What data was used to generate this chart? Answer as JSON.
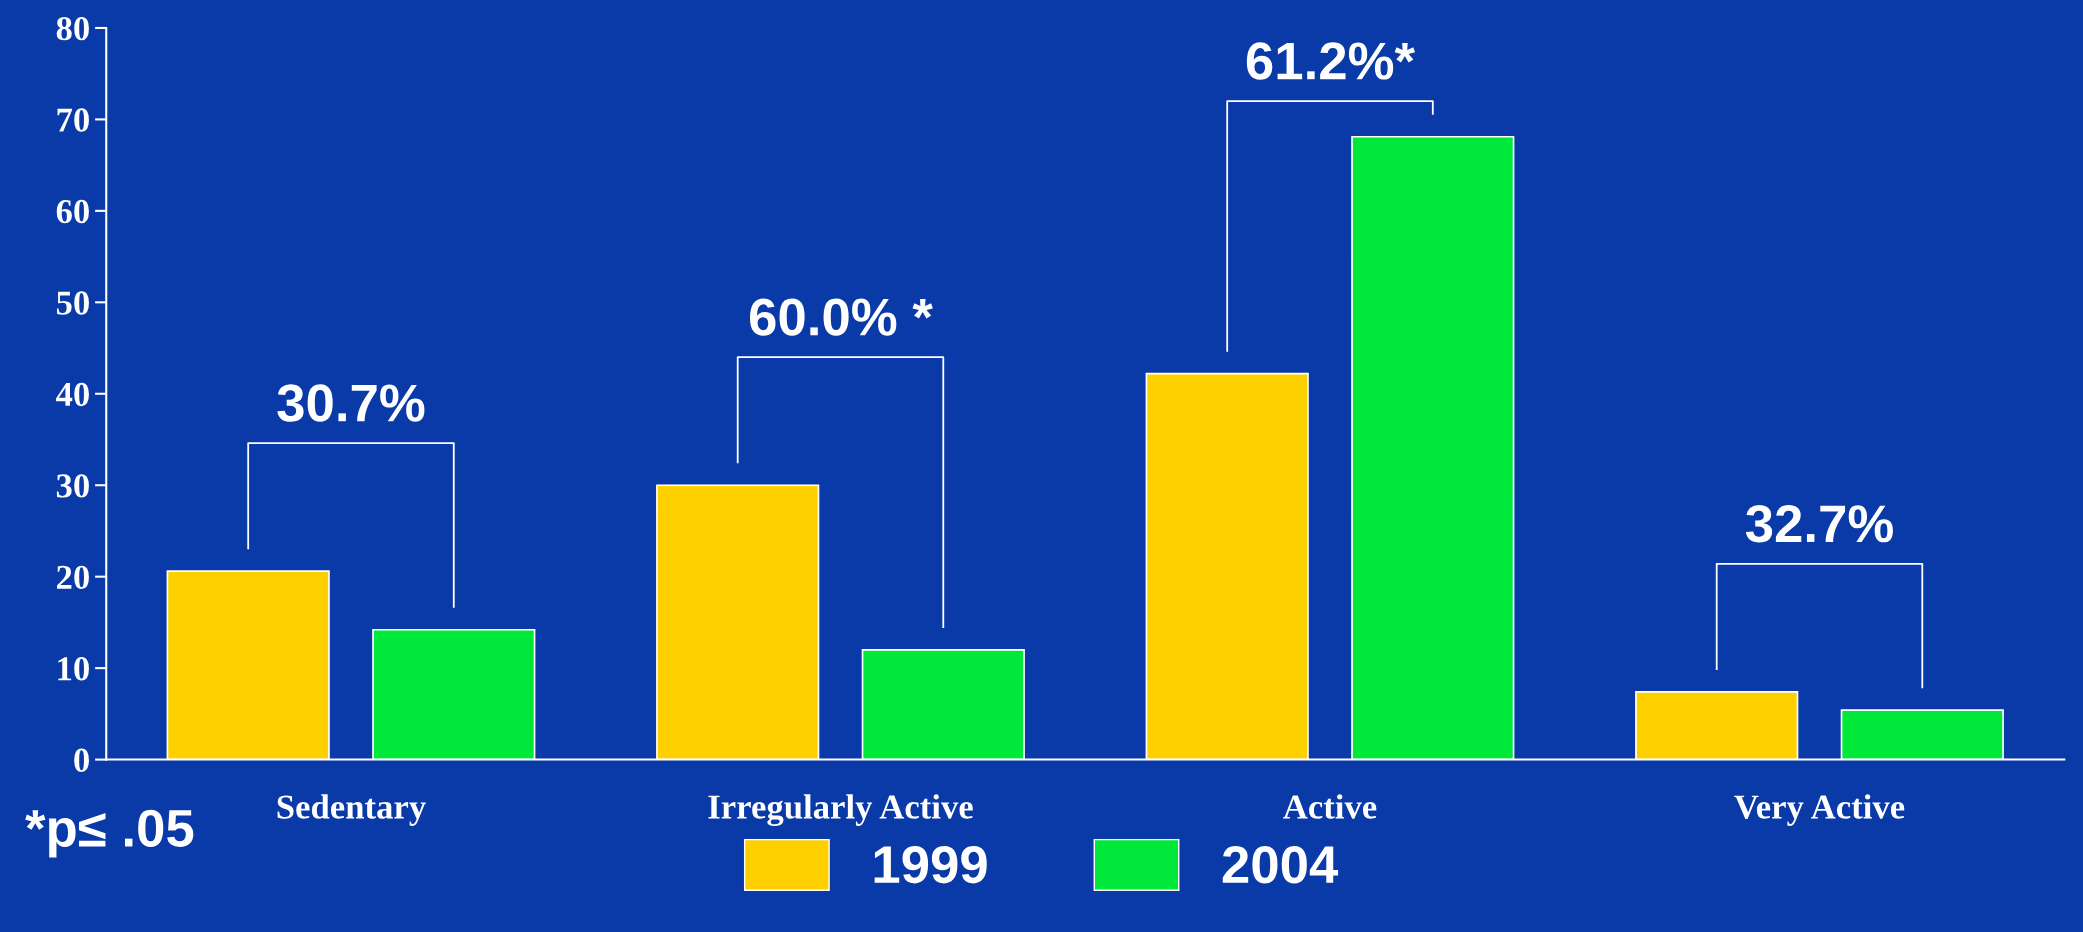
{
  "chart_data": {
    "type": "bar",
    "categories": [
      "Sedentary",
      "Irregularly Active",
      "Active",
      "Very Active"
    ],
    "series": [
      {
        "name": "1999",
        "color": "#ffd000",
        "values": [
          20.6,
          30.0,
          42.2,
          7.4
        ]
      },
      {
        "name": "2004",
        "color": "#00e83a",
        "values": [
          14.2,
          12.0,
          68.1,
          5.4
        ]
      }
    ],
    "ylim": [
      0,
      80
    ],
    "yticks": [
      0,
      10,
      20,
      30,
      40,
      50,
      60,
      70,
      80
    ],
    "grid": false,
    "legend": "bottom",
    "annotations": [
      "30.7%",
      "60.0% *",
      "61.2%*",
      "32.7%",
      "*p≤ .05"
    ]
  }
}
